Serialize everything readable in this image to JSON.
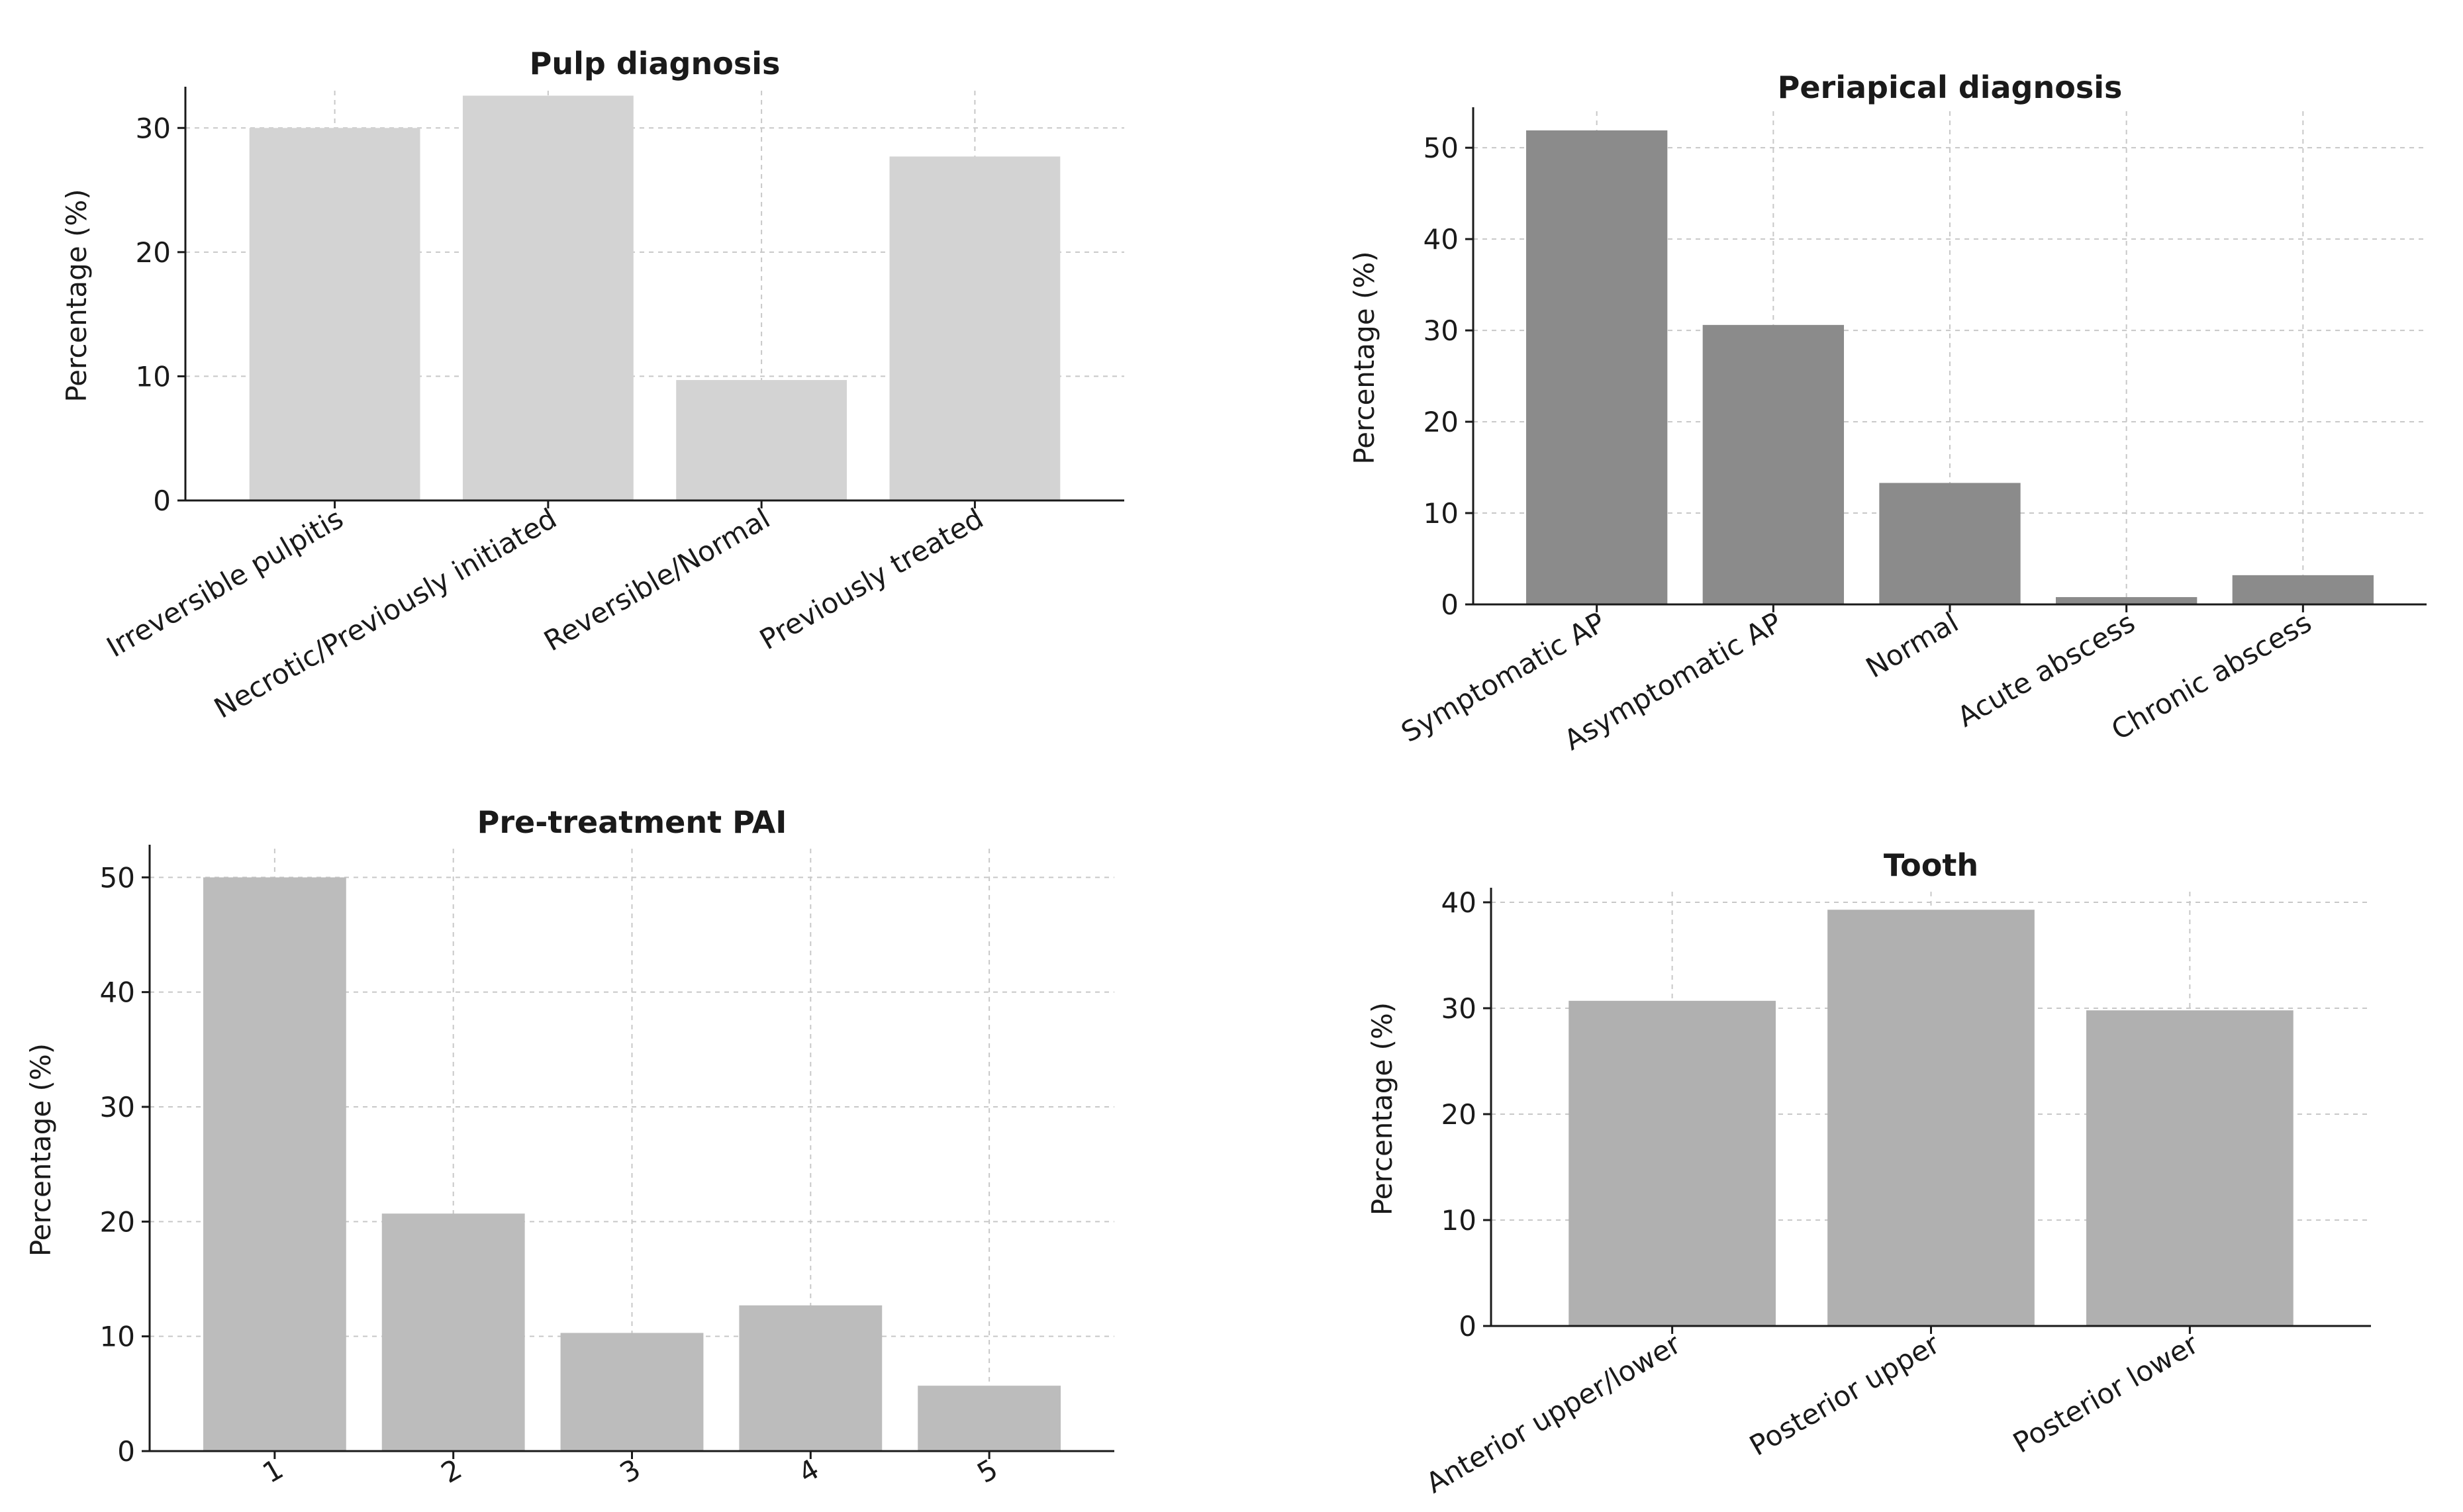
{
  "chart_data": [
    {
      "id": "pulp",
      "type": "bar",
      "title": "Pulp diagnosis",
      "xlabel": "",
      "ylabel": "Percentage (%)",
      "categories": [
        "Irreversible pulpitis",
        "Necrotic/Previously initiated",
        "Reversible/Normal",
        "Previously treated"
      ],
      "values": [
        30.0,
        32.6,
        9.7,
        27.7
      ],
      "ylim": [
        0,
        33
      ],
      "yticks": [
        0,
        10,
        20,
        30
      ],
      "grid": true,
      "bar_color": "#d3d3d3",
      "rotated_xticks": true
    },
    {
      "id": "periapical",
      "type": "bar",
      "title": "Periapical diagnosis",
      "xlabel": "",
      "ylabel": "Percentage (%)",
      "categories": [
        "Symptomatic AP",
        "Asymptomatic AP",
        "Normal",
        "Acute abscess",
        "Chronic abscess"
      ],
      "values": [
        51.9,
        30.6,
        13.3,
        0.8,
        3.2
      ],
      "ylim": [
        0,
        54
      ],
      "yticks": [
        0,
        10,
        20,
        30,
        40,
        50
      ],
      "grid": true,
      "bar_color": "#8b8b8b",
      "rotated_xticks": true
    },
    {
      "id": "pai",
      "type": "bar",
      "title": "Pre-treatment PAI",
      "xlabel": "",
      "ylabel": "Percentage (%)",
      "categories": [
        "1",
        "2",
        "3",
        "4",
        "5"
      ],
      "values": [
        50.0,
        20.7,
        10.3,
        12.7,
        5.7
      ],
      "ylim": [
        0,
        52.5
      ],
      "yticks": [
        0,
        10,
        20,
        30,
        40,
        50
      ],
      "grid": true,
      "bar_color": "#bcbcbc",
      "rotated_xticks": true
    },
    {
      "id": "tooth",
      "type": "bar",
      "title": "Tooth",
      "xlabel": "",
      "ylabel": "Percentage (%)",
      "categories": [
        "Anterior upper/lower",
        "Posterior upper",
        "Posterior lower"
      ],
      "values": [
        30.7,
        39.3,
        29.8
      ],
      "ylim": [
        0,
        41
      ],
      "yticks": [
        0,
        10,
        20,
        30,
        40
      ],
      "grid": true,
      "bar_color": "#b0b0b0",
      "rotated_xticks": true
    }
  ]
}
